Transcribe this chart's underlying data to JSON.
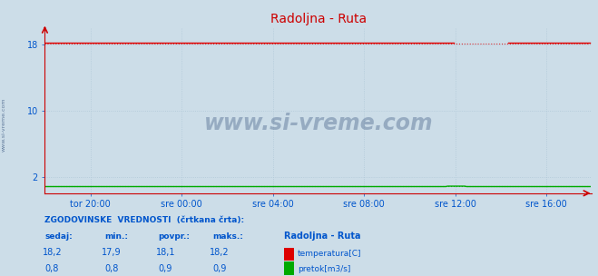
{
  "title": "Radoljna - Ruta",
  "fig_bg_color": "#ccdde8",
  "plot_bg_color": "#ccdde8",
  "title_color": "#cc0000",
  "title_fontsize": 10,
  "xlim_start": 0,
  "xlim_end": 288,
  "ylim": [
    0,
    20
  ],
  "ytick_positions": [
    2,
    10,
    18
  ],
  "ytick_labels": [
    "2",
    "10",
    "18"
  ],
  "grid_color": "#b0c8d8",
  "temp_color": "#dd0000",
  "flow_color": "#00aa00",
  "temp_value": 18.2,
  "temp_min": 17.9,
  "temp_avg": 18.1,
  "temp_max": 18.2,
  "flow_value": 0.8,
  "flow_min": 0.8,
  "flow_avg": 0.9,
  "flow_max": 0.9,
  "xtick_positions": [
    24,
    72,
    120,
    168,
    216,
    264
  ],
  "xtick_labels": [
    "tor 20:00",
    "sre 00:00",
    "sre 04:00",
    "sre 08:00",
    "sre 12:00",
    "sre 16:00"
  ],
  "axis_color": "#cc0000",
  "watermark": "www.si-vreme.com",
  "watermark_color": "#1a3a6a",
  "sidebar_text": "www.si-vreme.com",
  "sidebar_color": "#1a3a6a",
  "legend_title": "Radoljna - Ruta",
  "legend_temp_label": "temperatura[C]",
  "legend_flow_label": "pretok[m3/s]",
  "footer_header": "ZGODOVINSKE  VREDNOSTI  (črtkana črta):",
  "footer_col1": "sedaj:",
  "footer_col2": "min.:",
  "footer_col3": "povpr.:",
  "footer_col4": "maks.:",
  "temp_vals": [
    "18,2",
    "17,9",
    "18,1",
    "18,2"
  ],
  "flow_vals": [
    "0,8",
    "0,8",
    "0,9",
    "0,9"
  ],
  "text_color_blue": "#0055cc",
  "text_color_dark": "#003399"
}
